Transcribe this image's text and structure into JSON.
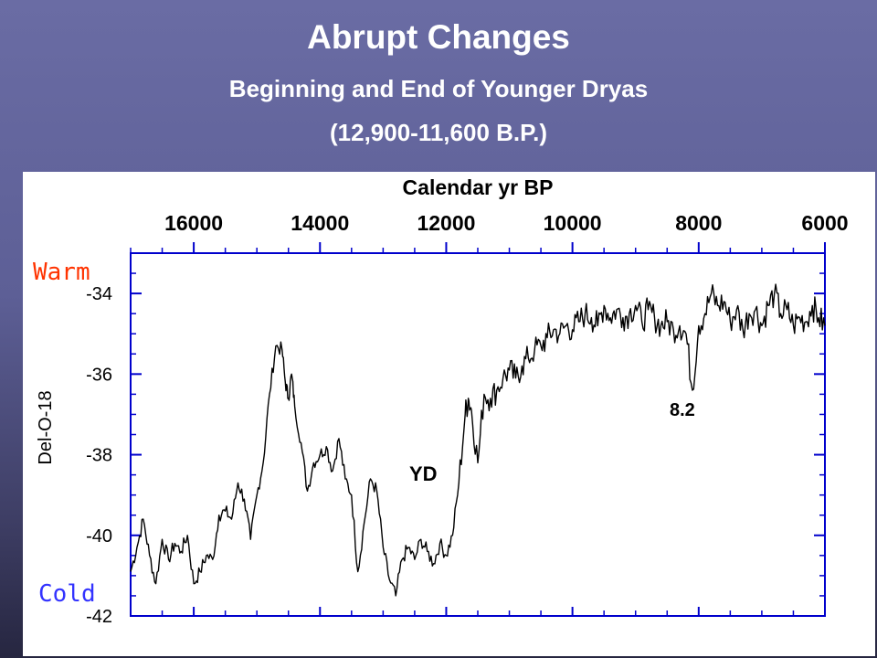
{
  "slide": {
    "title": "Abrupt Changes",
    "subtitle": "Beginning and End of Younger Dryas",
    "subtitle2": "(12,900-11,600 B.P.)"
  },
  "colors": {
    "warm": "#ff3300",
    "cold": "#3333ff",
    "line": "#000000",
    "axis": "#0000cc"
  },
  "chart_data": {
    "type": "line",
    "xlabel": "Calendar yr BP",
    "ylabel": "Del-O-18",
    "x_ticks": [
      "16000",
      "14000",
      "12000",
      "10000",
      "8000",
      "6000"
    ],
    "y_ticks": [
      "-34",
      "-36",
      "-38",
      "-40",
      "-42"
    ],
    "xlim": [
      17000,
      6000
    ],
    "ylim": [
      -42,
      -33
    ],
    "x_reversed": true,
    "warm_label": "Warm",
    "cold_label": "Cold",
    "annotations": [
      {
        "text": "YD",
        "x": 12300,
        "y": -38.4
      },
      {
        "text": "8.2",
        "x": 7800,
        "y": -36.9
      }
    ],
    "series": [
      {
        "x": [
          17000,
          16900,
          16800,
          16700,
          16600,
          16500,
          16400,
          16300,
          16200,
          16100,
          16000,
          15900,
          15800,
          15700,
          15600,
          15500,
          15400,
          15300,
          15200,
          15100,
          15000,
          14900,
          14800,
          14700,
          14600,
          14550,
          14500,
          14450,
          14400,
          14300,
          14200,
          14100,
          14000,
          13900,
          13800,
          13700,
          13600,
          13500,
          13400,
          13300,
          13200,
          13100,
          13000,
          12900,
          12800,
          12700,
          12600,
          12500,
          12400,
          12300,
          12200,
          12100,
          12000,
          11900,
          11800,
          11700,
          11650,
          11600,
          11500,
          11400,
          11300,
          11200,
          11100,
          11000,
          10900,
          10800,
          10700,
          10600,
          10500,
          10400,
          10300,
          10200,
          10100,
          10000,
          9900,
          9800,
          9700,
          9600,
          9500,
          9400,
          9300,
          9200,
          9100,
          9000,
          8900,
          8800,
          8700,
          8600,
          8500,
          8400,
          8300,
          8200,
          8100,
          8000,
          7900,
          7800,
          7700,
          7600,
          7500,
          7400,
          7300,
          7200,
          7100,
          7000,
          6900,
          6800,
          6700,
          6600,
          6500,
          6400,
          6300,
          6200,
          6100,
          6000
        ],
        "y": [
          -40.9,
          -40.3,
          -39.6,
          -40.5,
          -41.2,
          -40.1,
          -40.6,
          -40.2,
          -40.4,
          -40.0,
          -41.2,
          -40.9,
          -40.5,
          -40.6,
          -39.5,
          -39.4,
          -39.6,
          -38.7,
          -39.1,
          -40.1,
          -39.0,
          -38.2,
          -36.5,
          -35.3,
          -35.4,
          -36.2,
          -36.6,
          -36.0,
          -36.8,
          -37.7,
          -38.9,
          -38.2,
          -38.0,
          -37.8,
          -38.4,
          -37.6,
          -38.6,
          -39.0,
          -40.9,
          -39.7,
          -38.6,
          -38.9,
          -40.3,
          -41.1,
          -41.5,
          -40.6,
          -40.3,
          -40.6,
          -40.1,
          -40.4,
          -40.7,
          -40.2,
          -40.5,
          -40.0,
          -38.7,
          -37.0,
          -36.6,
          -36.9,
          -38.2,
          -36.5,
          -36.6,
          -36.4,
          -36.1,
          -35.9,
          -36.1,
          -35.8,
          -35.6,
          -35.4,
          -35.3,
          -35.1,
          -34.9,
          -35.0,
          -34.8,
          -34.9,
          -34.7,
          -34.5,
          -34.6,
          -34.8,
          -34.3,
          -34.6,
          -34.4,
          -34.6,
          -34.5,
          -34.3,
          -34.7,
          -34.4,
          -34.6,
          -34.8,
          -34.7,
          -34.9,
          -34.8,
          -35.0,
          -36.4,
          -34.8,
          -34.5,
          -34.0,
          -34.3,
          -34.2,
          -34.7,
          -34.4,
          -34.9,
          -34.5,
          -34.4,
          -34.8,
          -34.3,
          -34.0,
          -34.5,
          -34.4,
          -34.8,
          -34.6,
          -34.7,
          -34.3,
          -34.6,
          -34.8
        ]
      }
    ]
  }
}
